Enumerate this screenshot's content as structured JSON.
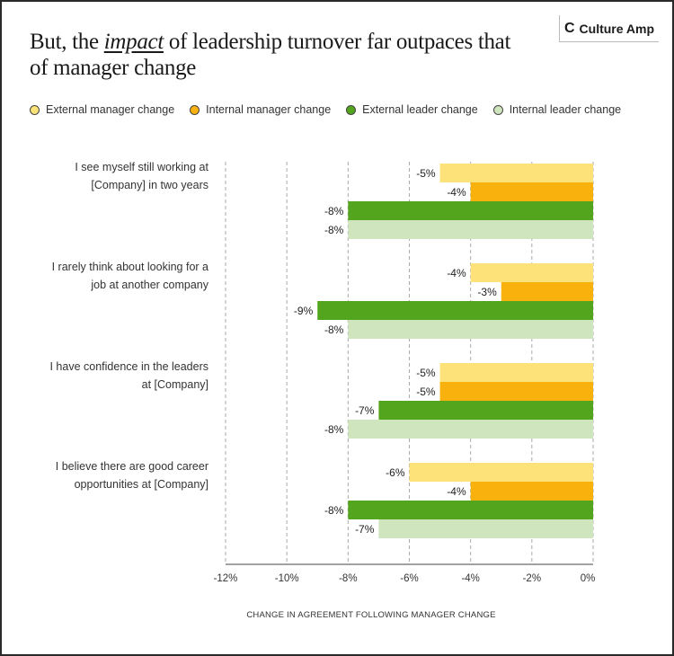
{
  "header": {
    "title_before": "But, the",
    "title_emphasis": "impact",
    "title_after": "of leadership turnover far outpaces that of manager change",
    "logo_text": "Culture Amp"
  },
  "colors": {
    "External manager change": "#fde27a",
    "Internal manager change": "#f9b20d",
    "External leader change": "#52a51c",
    "Internal leader change": "#cfe5bd"
  },
  "chart_data": {
    "type": "bar",
    "orientation": "horizontal",
    "categories": [
      [
        "I see myself still working at",
        "[Company] in two years"
      ],
      [
        "I rarely think about looking for a",
        "job at another company"
      ],
      [
        "I have confidence in the leaders",
        "at [Company]"
      ],
      [
        "I believe there are good career",
        "opportunities at [Company]"
      ]
    ],
    "series": [
      {
        "name": "External manager change",
        "values": [
          -5,
          -4,
          -5,
          -6
        ],
        "labels": [
          "-5%",
          "-4%",
          "-5%",
          "-6%"
        ]
      },
      {
        "name": "Internal manager change",
        "values": [
          -4,
          -3,
          -5,
          -4
        ],
        "labels": [
          "-4%",
          "-3%",
          "-5%",
          "-4%"
        ]
      },
      {
        "name": "External leader change",
        "values": [
          -8,
          -9,
          -7,
          -8
        ],
        "labels": [
          "-8%",
          "-9%",
          "-7%",
          "-8%"
        ]
      },
      {
        "name": "Internal leader change",
        "values": [
          -8,
          -8,
          -8,
          -7
        ],
        "labels": [
          "-8%",
          "-8%",
          "-8%",
          "-7%"
        ]
      }
    ],
    "xlim": [
      -12,
      0
    ],
    "xticks": [
      -12,
      -10,
      -8,
      -6,
      -4,
      -2,
      0
    ],
    "xtick_labels": [
      "-12%",
      "-10%",
      "-8%",
      "-6%",
      "-4%",
      "-2%",
      "0%"
    ],
    "xlabel": "CHANGE IN AGREEMENT FOLLOWING MANAGER CHANGE",
    "grid": "vertical dashed",
    "legend": "top"
  }
}
